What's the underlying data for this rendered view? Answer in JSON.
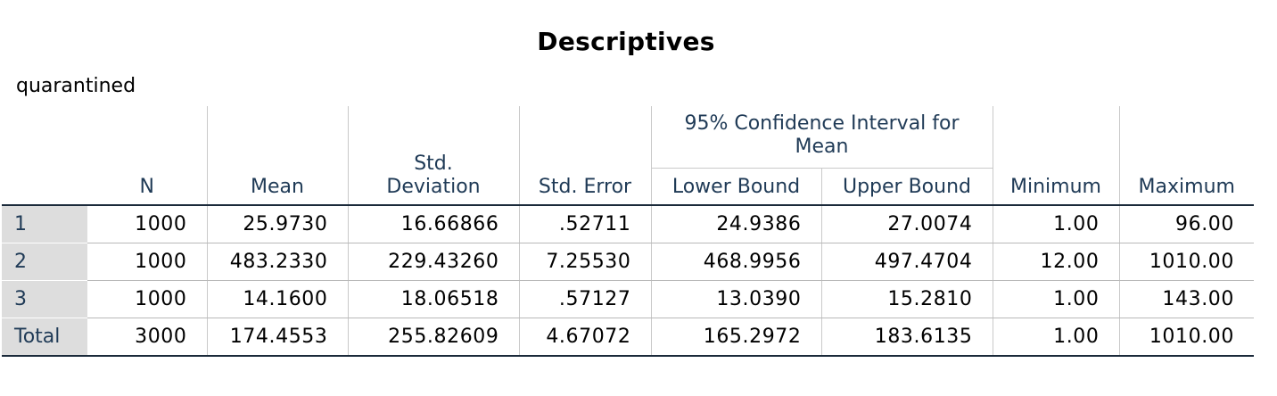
{
  "title": "Descriptives",
  "variable": "quarantined",
  "columns": {
    "n": "N",
    "mean": "Mean",
    "std_dev_line1": "Std.",
    "std_dev_line2": "Deviation",
    "std_error": "Std. Error",
    "ci_group_line1": "95% Confidence Interval for",
    "ci_group_line2": "Mean",
    "lower_bound": "Lower Bound",
    "upper_bound": "Upper Bound",
    "minimum": "Minimum",
    "maximum": "Maximum"
  },
  "rows": [
    {
      "label": "1",
      "n": "1000",
      "mean": "25.9730",
      "std_dev": "16.66866",
      "std_error": ".52711",
      "lower": "24.9386",
      "upper": "27.0074",
      "min": "1.00",
      "max": "96.00"
    },
    {
      "label": "2",
      "n": "1000",
      "mean": "483.2330",
      "std_dev": "229.43260",
      "std_error": "7.25530",
      "lower": "468.9956",
      "upper": "497.4704",
      "min": "12.00",
      "max": "1010.00"
    },
    {
      "label": "3",
      "n": "1000",
      "mean": "14.1600",
      "std_dev": "18.06518",
      "std_error": ".57127",
      "lower": "13.0390",
      "upper": "15.2810",
      "min": "1.00",
      "max": "143.00"
    },
    {
      "label": "Total",
      "n": "3000",
      "mean": "174.4553",
      "std_dev": "255.82609",
      "std_error": "4.67072",
      "lower": "165.2972",
      "upper": "183.6135",
      "min": "1.00",
      "max": "1010.00"
    }
  ]
}
